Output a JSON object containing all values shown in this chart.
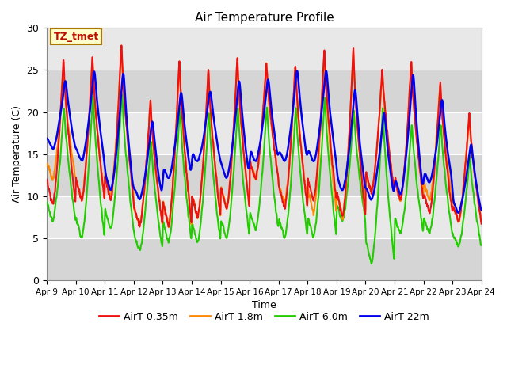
{
  "title": "Air Temperature Profile",
  "xlabel": "Time",
  "ylabel": "Air Temperature (C)",
  "ylim": [
    0,
    30
  ],
  "background_color": "#e8e8e8",
  "band_color_light": "#e8e8e8",
  "band_color_dark": "#d8d8d8",
  "series_colors": {
    "AirT 0.35m": "#ee1111",
    "AirT 1.8m": "#ff8800",
    "AirT 6.0m": "#22cc00",
    "AirT 22m": "#0000ee"
  },
  "annotation_label": "TZ_tmet",
  "annotation_color": "#bb1100",
  "annotation_bg": "#ffffcc",
  "annotation_border": "#aa7700",
  "tick_labels": [
    "Apr 9",
    "Apr 10",
    "Apr 11",
    "Apr 12",
    "Apr 13",
    "Apr 14",
    "Apr 15",
    "Apr 16",
    "Apr 17",
    "Apr 18",
    "Apr 19",
    "Apr 20",
    "Apr 21",
    "Apr 22",
    "Apr 23",
    "Apr 24"
  ],
  "n_days": 15,
  "n_pts_per_day": 144,
  "daily_peaks_035": [
    26.7,
    27.0,
    28.5,
    21.8,
    26.8,
    25.5,
    26.7,
    26.3,
    26.1,
    27.8,
    27.9,
    25.5,
    26.5,
    24.0,
    20.0
  ],
  "daily_peaks_18": [
    25.3,
    26.8,
    28.3,
    21.5,
    26.5,
    25.2,
    26.5,
    26.0,
    25.8,
    27.5,
    27.6,
    25.2,
    26.2,
    23.7,
    19.8
  ],
  "daily_peaks_60": [
    21.0,
    22.5,
    22.8,
    17.0,
    21.0,
    20.5,
    21.0,
    21.0,
    21.0,
    22.5,
    20.5,
    21.0,
    19.0,
    19.0,
    15.0
  ],
  "daily_peaks_22m": [
    24.5,
    26.0,
    26.0,
    20.0,
    23.5,
    23.5,
    25.0,
    25.0,
    26.0,
    26.0,
    24.0,
    21.0,
    26.0,
    22.5,
    17.0
  ],
  "daily_mins_035": [
    9.0,
    9.5,
    9.5,
    6.5,
    6.5,
    7.5,
    8.5,
    12.0,
    8.5,
    9.5,
    7.5,
    10.5,
    9.5,
    8.0,
    7.0
  ],
  "daily_mins_18": [
    12.0,
    9.5,
    10.0,
    6.5,
    6.5,
    7.5,
    8.5,
    12.0,
    9.0,
    8.0,
    7.5,
    10.5,
    9.5,
    9.5,
    7.0
  ],
  "daily_mins_60": [
    7.0,
    5.0,
    6.0,
    3.5,
    4.5,
    4.5,
    5.0,
    6.0,
    5.0,
    5.0,
    7.0,
    2.0,
    5.5,
    5.5,
    4.0
  ],
  "daily_mins_22m": [
    15.5,
    14.0,
    10.5,
    9.5,
    12.0,
    14.0,
    12.0,
    14.0,
    14.0,
    14.0,
    10.5,
    9.5,
    10.0,
    11.5,
    8.0
  ],
  "peak_time_035": 0.58,
  "peak_time_18": 0.58,
  "peak_time_60": 0.6,
  "peak_time_22m": 0.65,
  "lw": 1.5
}
